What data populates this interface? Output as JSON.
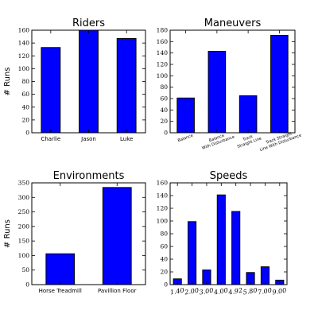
{
  "figure": {
    "bar_color": "#0000ff",
    "edge_color": "#000000"
  },
  "chart_data": [
    {
      "type": "bar",
      "title": "Riders",
      "xlabel": "",
      "ylabel": "# Runs",
      "categories": [
        "Charlie",
        "Jason",
        "Luke"
      ],
      "values": [
        133,
        160,
        147
      ],
      "ylim": [
        0,
        160
      ],
      "yticks": [
        0,
        20,
        40,
        60,
        80,
        100,
        120,
        140,
        160
      ],
      "grid": false,
      "legend": false
    },
    {
      "type": "bar",
      "title": "Maneuvers",
      "xlabel": "",
      "ylabel": "",
      "categories": [
        "Balance",
        "Balance With Disturbance",
        "Track Straight Line",
        "Track Straight Line With Disturbance"
      ],
      "category_lines": [
        [
          "Balance"
        ],
        [
          "Balance",
          "With Disturbance"
        ],
        [
          "Track",
          "Straight Line"
        ],
        [
          "Track Straight",
          "Line With Disturbance"
        ]
      ],
      "values": [
        61,
        143,
        65,
        171
      ],
      "ylim": [
        0,
        180
      ],
      "yticks": [
        0,
        20,
        40,
        60,
        80,
        100,
        120,
        140,
        160,
        180
      ],
      "grid": false,
      "legend": false
    },
    {
      "type": "bar",
      "title": "Environments",
      "xlabel": "",
      "ylabel": "# Runs",
      "categories": [
        "Horse Treadmill",
        "Pavillion Floor"
      ],
      "values": [
        106,
        334
      ],
      "ylim": [
        0,
        350
      ],
      "yticks": [
        0,
        50,
        100,
        150,
        200,
        250,
        300,
        350
      ],
      "grid": false,
      "legend": false
    },
    {
      "type": "bar",
      "title": "Speeds",
      "xlabel": "",
      "ylabel": "",
      "categories": [
        "1.40",
        "2.00",
        "3.00",
        "4.00",
        "4.92",
        "5.80",
        "7.00",
        "9.00"
      ],
      "values": [
        9,
        99,
        23,
        141,
        115,
        19,
        28,
        7
      ],
      "ylim": [
        0,
        160
      ],
      "yticks": [
        0,
        20,
        40,
        60,
        80,
        100,
        120,
        140,
        160
      ],
      "grid": false,
      "legend": false
    }
  ]
}
